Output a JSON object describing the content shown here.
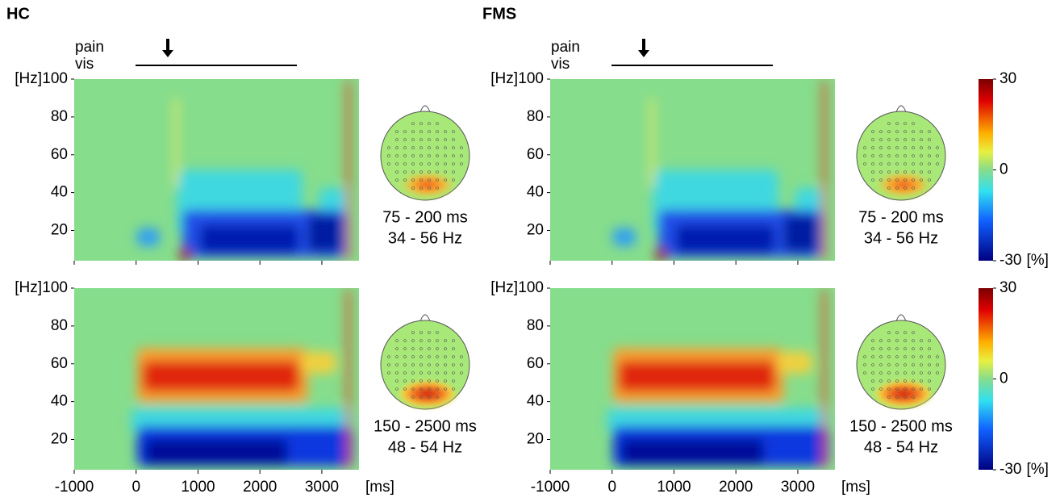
{
  "columns": [
    {
      "title": "HC",
      "stimulus": [
        "pain",
        "vis"
      ]
    },
    {
      "title": "FMS",
      "stimulus": [
        "pain",
        "vis"
      ]
    }
  ],
  "chart_data": [
    {
      "type": "heatmap",
      "ylabel": "[Hz]",
      "xlim": [
        -1000,
        3600
      ],
      "ylim": [
        4,
        100
      ],
      "xticks": [
        -1000,
        0,
        1000,
        2000,
        3000
      ],
      "yticks": [
        20,
        40,
        60,
        80,
        100
      ],
      "annotations": [
        "75 - 200 ms",
        "34 - 56 Hz"
      ]
    },
    {
      "type": "heatmap",
      "ylabel": "[Hz]",
      "xlabel": "[ms]",
      "xlim": [
        -1000,
        3600
      ],
      "ylim": [
        4,
        100
      ],
      "xticks": [
        -1000,
        0,
        1000,
        2000,
        3000
      ],
      "yticks": [
        20,
        40,
        60,
        80,
        100
      ],
      "annotations": [
        "150 - 2500 ms",
        "48 - 54 Hz"
      ]
    },
    {
      "type": "heatmap",
      "ylabel": "[Hz]",
      "xlim": [
        -1000,
        3600
      ],
      "ylim": [
        4,
        100
      ],
      "xticks": [
        -1000,
        0,
        1000,
        2000,
        3000
      ],
      "yticks": [
        20,
        40,
        60,
        80,
        100
      ],
      "annotations": [
        "75 - 200 ms",
        "34 - 56 Hz"
      ]
    },
    {
      "type": "heatmap",
      "ylabel": "[Hz]",
      "xlabel": "[ms]",
      "xlim": [
        -1000,
        3600
      ],
      "ylim": [
        4,
        100
      ],
      "xticks": [
        -1000,
        0,
        1000,
        2000,
        3000
      ],
      "yticks": [
        20,
        40,
        60,
        80,
        100
      ],
      "annotations": [
        "150 - 2500 ms",
        "48 - 54 Hz"
      ]
    }
  ],
  "colorbars": [
    {
      "lim": [
        -30,
        30
      ],
      "ticks": [
        30,
        0,
        -30
      ],
      "unit": "[%]"
    },
    {
      "lim": [
        -30,
        30
      ],
      "ticks": [
        30,
        0,
        -30
      ],
      "unit": "[%]"
    }
  ]
}
